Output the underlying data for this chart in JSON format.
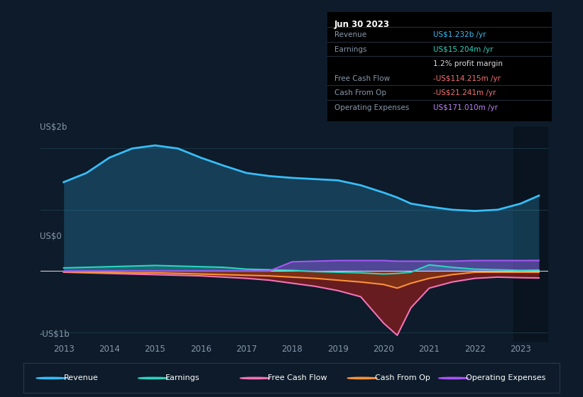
{
  "bg_color": "#0d1b2a",
  "plot_bg_color": "#0d1b2a",
  "grid_color": "#1e3a4a",
  "ylabel_top": "US$2b",
  "ylabel_bottom": "-US$1b",
  "ylabel_zero": "US$0",
  "ylim": [
    -1.15,
    2.35
  ],
  "info_box": {
    "date": "Jun 30 2023",
    "rows": [
      {
        "label": "Revenue",
        "value": "US$1.232b /yr",
        "value_color": "#38bdf8"
      },
      {
        "label": "Earnings",
        "value": "US$15.204m /yr",
        "value_color": "#2dd4bf"
      },
      {
        "label": "",
        "value": "1.2% profit margin",
        "value_color": "#dddddd"
      },
      {
        "label": "Free Cash Flow",
        "value": "-US$114.215m /yr",
        "value_color": "#f87171"
      },
      {
        "label": "Cash From Op",
        "value": "-US$21.241m /yr",
        "value_color": "#f87171"
      },
      {
        "label": "Operating Expenses",
        "value": "US$171.010m /yr",
        "value_color": "#c084fc"
      }
    ]
  },
  "legend": [
    {
      "label": "Revenue",
      "color": "#38bdf8"
    },
    {
      "label": "Earnings",
      "color": "#2dd4bf"
    },
    {
      "label": "Free Cash Flow",
      "color": "#f472b6"
    },
    {
      "label": "Cash From Op",
      "color": "#fb923c"
    },
    {
      "label": "Operating Expenses",
      "color": "#a855f7"
    }
  ],
  "series": {
    "years": [
      2013,
      2013.5,
      2014,
      2014.5,
      2015,
      2015.5,
      2016,
      2016.5,
      2017,
      2017.5,
      2018,
      2018.5,
      2019,
      2019.5,
      2020,
      2020.3,
      2020.6,
      2021,
      2021.5,
      2022,
      2022.5,
      2023,
      2023.4
    ],
    "revenue": [
      1.45,
      1.6,
      1.85,
      2.0,
      2.05,
      2.0,
      1.85,
      1.72,
      1.6,
      1.55,
      1.52,
      1.5,
      1.48,
      1.4,
      1.28,
      1.2,
      1.1,
      1.05,
      1.0,
      0.98,
      1.0,
      1.1,
      1.23
    ],
    "earnings": [
      0.05,
      0.06,
      0.07,
      0.08,
      0.09,
      0.08,
      0.07,
      0.06,
      0.03,
      0.02,
      0.01,
      -0.01,
      -0.02,
      -0.03,
      -0.05,
      -0.04,
      -0.02,
      0.1,
      0.06,
      0.03,
      0.02,
      0.01,
      0.015
    ],
    "free_cf": [
      -0.02,
      -0.03,
      -0.04,
      -0.05,
      -0.06,
      -0.07,
      -0.08,
      -0.1,
      -0.12,
      -0.15,
      -0.2,
      -0.25,
      -0.32,
      -0.42,
      -0.85,
      -1.05,
      -0.6,
      -0.28,
      -0.18,
      -0.12,
      -0.1,
      -0.11,
      -0.114
    ],
    "cash_from_op": [
      -0.01,
      -0.02,
      -0.02,
      -0.03,
      -0.03,
      -0.04,
      -0.05,
      -0.06,
      -0.07,
      -0.08,
      -0.1,
      -0.12,
      -0.15,
      -0.18,
      -0.22,
      -0.28,
      -0.2,
      -0.12,
      -0.06,
      -0.02,
      -0.02,
      -0.02,
      -0.021
    ],
    "op_expenses": [
      0.0,
      0.0,
      0.0,
      0.0,
      0.0,
      0.0,
      0.0,
      0.0,
      0.0,
      0.0,
      0.15,
      0.16,
      0.17,
      0.17,
      0.17,
      0.16,
      0.16,
      0.16,
      0.16,
      0.17,
      0.17,
      0.17,
      0.171
    ]
  }
}
